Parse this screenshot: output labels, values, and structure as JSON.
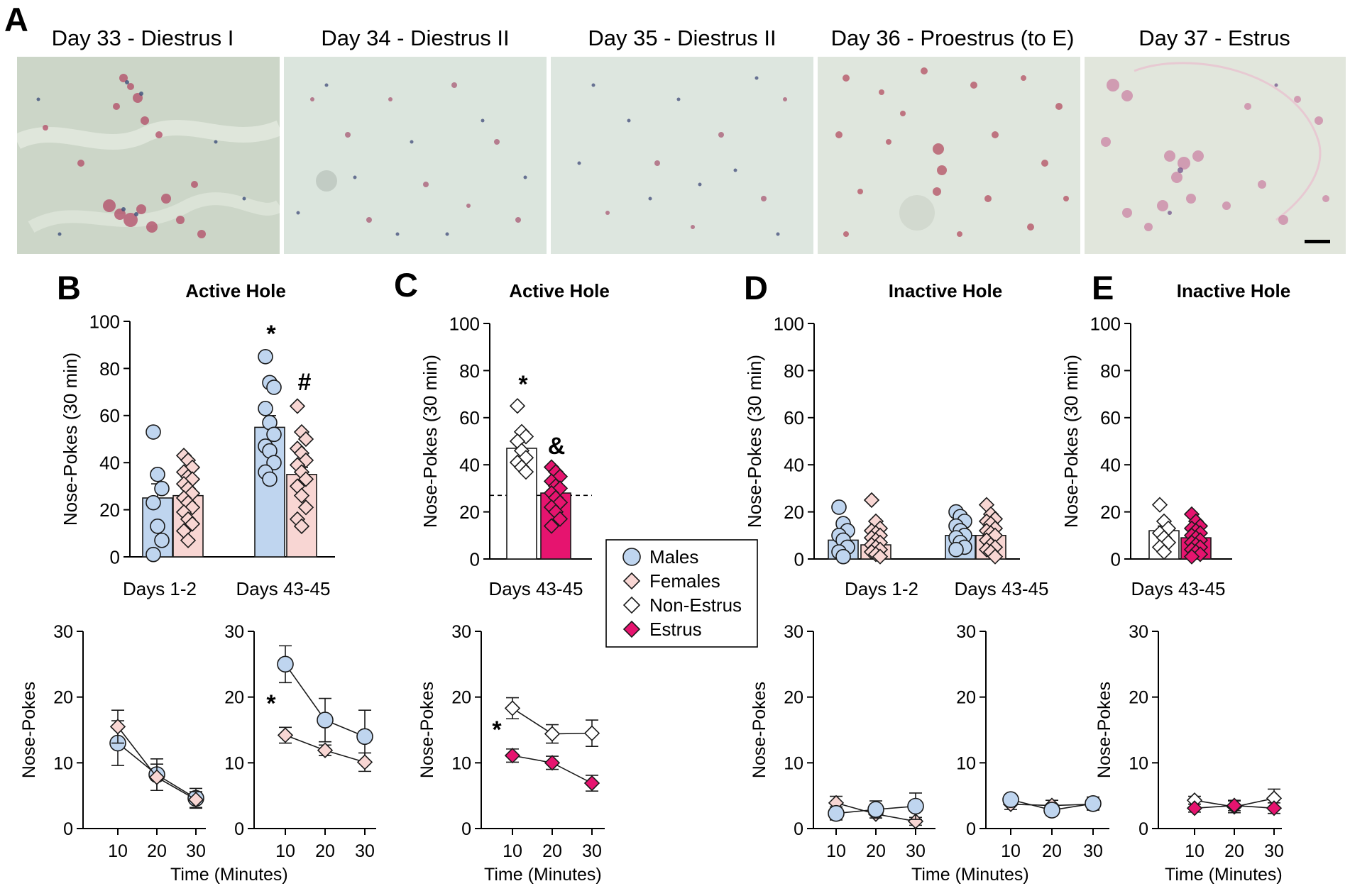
{
  "panel_letters": [
    "A",
    "B",
    "C",
    "D",
    "E"
  ],
  "images": [
    {
      "label": "Day 33 - Diestrus I",
      "tint": "#ccd6c8"
    },
    {
      "label": "Day 34 - Diestrus II",
      "tint": "#dbe5dd"
    },
    {
      "label": "Day 35 - Diestrus II",
      "tint": "#dde6df"
    },
    {
      "label": "Day 36 - Proestrus (to E)",
      "tint": "#dfe6dd"
    },
    {
      "label": "Day 37 - Estrus",
      "tint": "#e1e6dc"
    }
  ],
  "colors": {
    "males": "#bfd5ef",
    "females": "#f8d6d3",
    "non_estrus": "#ffffff",
    "estrus": "#e6146f",
    "stroke": "#1a1a1a"
  },
  "legend": [
    {
      "label": "Males",
      "marker": "circle",
      "color": "#bfd5ef"
    },
    {
      "label": "Females",
      "marker": "diamond",
      "color": "#f8d6d3"
    },
    {
      "label": "Non-Estrus",
      "marker": "diamond",
      "color": "#ffffff"
    },
    {
      "label": "Estrus",
      "marker": "diamond",
      "color": "#e6146f"
    }
  ],
  "chart_data": [
    {
      "id": "B-bar",
      "type": "bar",
      "title": "Active Hole",
      "ylabel": "Nose-Pokes (30 min)",
      "ylim": [
        0,
        100
      ],
      "yticks": [
        0,
        20,
        40,
        60,
        80,
        100
      ],
      "categories": [
        "Days 1-2",
        "Days 43-45"
      ],
      "series": [
        {
          "name": "Males",
          "marker": "circle",
          "values": [
            25,
            55
          ],
          "sem": [
            6,
            5
          ],
          "points": [
            [
              53,
              35,
              29,
              23,
              13,
              7,
              1
            ],
            [
              85,
              74,
              72,
              63,
              57,
              52,
              47,
              45,
              40,
              36,
              33
            ]
          ]
        },
        {
          "name": "Females",
          "marker": "diamond",
          "values": [
            26,
            35
          ],
          "sem": [
            3,
            3
          ],
          "points": [
            [
              43,
              41,
              38,
              36,
              34,
              33,
              31,
              29,
              27,
              25,
              23,
              21,
              19,
              16,
              14,
              11,
              7
            ],
            [
              64,
              53,
              50,
              46,
              44,
              41,
              39,
              36,
              33,
              30,
              26,
              21,
              16,
              13
            ]
          ]
        }
      ],
      "annotations": [
        {
          "text": "*",
          "target": "Males, Days 43-45"
        },
        {
          "text": "#",
          "target": "Females, Days 43-45"
        }
      ]
    },
    {
      "id": "B-time-1",
      "type": "line",
      "xlabel": "Time  (Minutes)",
      "ylabel": "Nose-Pokes",
      "x": [
        10,
        20,
        30
      ],
      "ylim": [
        0,
        30
      ],
      "yticks": [
        0,
        10,
        20,
        30
      ],
      "series": [
        {
          "name": "Males",
          "values": [
            13.0,
            8.2,
            4.6
          ],
          "sem": [
            3.4,
            2.4,
            1.5
          ]
        },
        {
          "name": "Females",
          "values": [
            15.5,
            7.8,
            4.4
          ],
          "sem": [
            2.5,
            2.0,
            1.2
          ]
        }
      ]
    },
    {
      "id": "B-time-2",
      "type": "line",
      "xlabel": "",
      "ylabel": "",
      "x": [
        10,
        20,
        30
      ],
      "ylim": [
        0,
        30
      ],
      "yticks": [
        0,
        10,
        20,
        30
      ],
      "series": [
        {
          "name": "Males",
          "values": [
            25.0,
            16.5,
            14.0
          ],
          "sem": [
            2.8,
            3.3,
            4.0
          ]
        },
        {
          "name": "Females",
          "values": [
            14.2,
            11.9,
            10.1
          ],
          "sem": [
            1.2,
            0.8,
            1.4
          ]
        }
      ],
      "annotations": [
        {
          "text": "*",
          "at_x": 10
        }
      ]
    },
    {
      "id": "C-bar",
      "type": "bar",
      "title": "Active Hole",
      "ylabel": "Nose-Pokes (30 min)",
      "ylim": [
        0,
        100
      ],
      "yticks": [
        0,
        20,
        40,
        60,
        80,
        100
      ],
      "categories": [
        "Days 43-45"
      ],
      "reference_line": 27,
      "series": [
        {
          "name": "Non-Estrus",
          "marker": "diamond",
          "values": [
            47
          ],
          "sem": [
            4
          ],
          "points": [
            [
              65,
              54,
              52,
              50,
              46,
              43,
              41,
              39,
              37
            ]
          ]
        },
        {
          "name": "Estrus",
          "marker": "diamond",
          "values": [
            28
          ],
          "sem": [
            3
          ],
          "points": [
            [
              39,
              37,
              35,
              33,
              31,
              30,
              28,
              26,
              24,
              22,
              20,
              17,
              14
            ]
          ]
        }
      ],
      "annotations": [
        {
          "text": "*",
          "target": "Non-Estrus"
        },
        {
          "text": "&",
          "target": "Estrus"
        }
      ]
    },
    {
      "id": "C-time",
      "type": "line",
      "xlabel": "Time  (Minutes)",
      "ylabel": "Nose-Pokes",
      "x": [
        10,
        20,
        30
      ],
      "ylim": [
        0,
        30
      ],
      "yticks": [
        0,
        10,
        20,
        30
      ],
      "series": [
        {
          "name": "Non-Estrus",
          "values": [
            18.3,
            14.4,
            14.5
          ],
          "sem": [
            1.6,
            1.4,
            2.0
          ]
        },
        {
          "name": "Estrus",
          "values": [
            11.1,
            10.0,
            6.9
          ],
          "sem": [
            1.0,
            1.0,
            1.2
          ]
        }
      ],
      "annotations": [
        {
          "text": "*",
          "at_x": 10
        }
      ]
    },
    {
      "id": "D-bar",
      "type": "bar",
      "title": "Inactive Hole",
      "ylabel": "Nose-Pokes (30 min)",
      "ylim": [
        0,
        100
      ],
      "yticks": [
        0,
        20,
        40,
        60,
        80,
        100
      ],
      "categories": [
        "Days 1-2",
        "Days 43-45"
      ],
      "series": [
        {
          "name": "Males",
          "marker": "circle",
          "values": [
            8,
            10
          ],
          "sem": [
            2.5,
            1.5
          ],
          "points": [
            [
              22,
              15,
              12,
              10,
              8,
              5,
              3,
              1
            ],
            [
              20,
              18,
              16,
              14,
              12,
              10,
              9,
              7,
              5,
              4
            ]
          ]
        },
        {
          "name": "Females",
          "marker": "diamond",
          "values": [
            6,
            10
          ],
          "sem": [
            1.5,
            1.5
          ],
          "points": [
            [
              25,
              16,
              13,
              12,
              11,
              10,
              9,
              8,
              7,
              6,
              5,
              4,
              3,
              2,
              1
            ],
            [
              23,
              19,
              17,
              16,
              15,
              13,
              12,
              11,
              10,
              8,
              6,
              5,
              4,
              3,
              1
            ]
          ]
        }
      ]
    },
    {
      "id": "D-time-1",
      "type": "line",
      "xlabel": "Time  (Minutes)",
      "ylabel": "Nose-Pokes",
      "x": [
        10,
        20,
        30
      ],
      "ylim": [
        0,
        30
      ],
      "yticks": [
        0,
        10,
        20,
        30
      ],
      "series": [
        {
          "name": "Females",
          "values": [
            3.9,
            2.2,
            1.1
          ],
          "sem": [
            1.0,
            0.6,
            0.6
          ]
        },
        {
          "name": "Males",
          "values": [
            2.3,
            2.9,
            3.4
          ],
          "sem": [
            1.0,
            1.3,
            2.0
          ]
        }
      ]
    },
    {
      "id": "D-time-2",
      "type": "line",
      "xlabel": "",
      "ylabel": "",
      "x": [
        10,
        20,
        30
      ],
      "ylim": [
        0,
        30
      ],
      "yticks": [
        0,
        10,
        20,
        30
      ],
      "series": [
        {
          "name": "Females",
          "values": [
            3.7,
            3.5,
            3.7
          ],
          "sem": [
            0.8,
            0.8,
            0.8
          ]
        },
        {
          "name": "Males",
          "values": [
            4.4,
            2.8,
            3.8
          ],
          "sem": [
            0.8,
            0.8,
            1.0
          ]
        }
      ]
    },
    {
      "id": "E-bar",
      "type": "bar",
      "title": "Inactive Hole",
      "ylabel": "Nose-Pokes (30 min)",
      "ylim": [
        0,
        100
      ],
      "yticks": [
        0,
        20,
        40,
        60,
        80,
        100
      ],
      "categories": [
        "Days 43-45"
      ],
      "series": [
        {
          "name": "Non-Estrus",
          "marker": "diamond",
          "values": [
            12
          ],
          "sem": [
            2
          ],
          "points": [
            [
              23,
              16,
              13,
              11,
              9,
              7,
              5,
              3
            ]
          ]
        },
        {
          "name": "Estrus",
          "marker": "diamond",
          "values": [
            9
          ],
          "sem": [
            1.5
          ],
          "points": [
            [
              19,
              16,
              14,
              13,
              12,
              11,
              10,
              9,
              8,
              7,
              6,
              5,
              4,
              3,
              2,
              1
            ]
          ]
        }
      ]
    },
    {
      "id": "E-time",
      "type": "line",
      "xlabel": "Time  (Minutes)",
      "ylabel": "Nose-Pokes",
      "x": [
        10,
        20,
        30
      ],
      "ylim": [
        0,
        30
      ],
      "yticks": [
        0,
        10,
        20,
        30
      ],
      "series": [
        {
          "name": "Non-Estrus",
          "values": [
            4.3,
            3.3,
            4.6
          ],
          "sem": [
            0.6,
            0.9,
            1.4
          ]
        },
        {
          "name": "Estrus",
          "values": [
            3.1,
            3.5,
            3.1
          ],
          "sem": [
            0.6,
            0.8,
            0.8
          ]
        }
      ]
    }
  ]
}
